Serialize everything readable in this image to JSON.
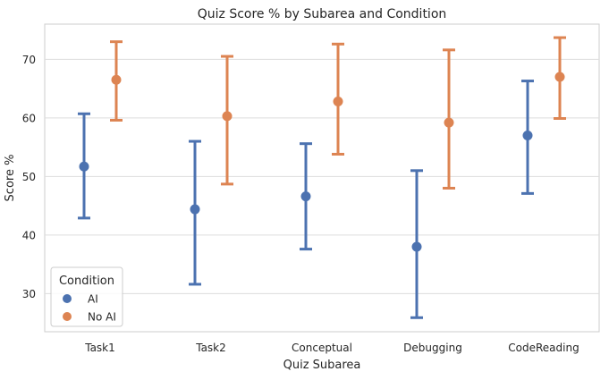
{
  "chart_data": {
    "type": "scatter",
    "subtype": "point-plot-with-error-bars",
    "title": "Quiz Score % by Subarea and Condition",
    "xlabel": "Quiz Subarea",
    "ylabel": "Score %",
    "categories": [
      "Task1",
      "Task2",
      "Conceptual",
      "Debugging",
      "CodeReading"
    ],
    "ylim": [
      23.5,
      76
    ],
    "yticks": [
      30,
      40,
      50,
      60,
      70
    ],
    "grid": "horizontal",
    "legend": {
      "title": "Condition",
      "position": "bottom-left"
    },
    "series": [
      {
        "name": "AI",
        "color": "#4c72b0",
        "values": [
          51.7,
          44.4,
          46.6,
          38.0,
          57.0
        ],
        "ci_low": [
          42.9,
          31.6,
          37.6,
          25.9,
          47.1
        ],
        "ci_high": [
          60.7,
          56.0,
          55.6,
          51.0,
          66.3
        ]
      },
      {
        "name": "No AI",
        "color": "#dd8452",
        "values": [
          66.5,
          60.3,
          62.8,
          59.2,
          67.0
        ],
        "ci_low": [
          59.6,
          48.7,
          53.8,
          48.0,
          59.9
        ],
        "ci_high": [
          73.0,
          70.5,
          72.6,
          71.6,
          73.7
        ]
      }
    ]
  }
}
